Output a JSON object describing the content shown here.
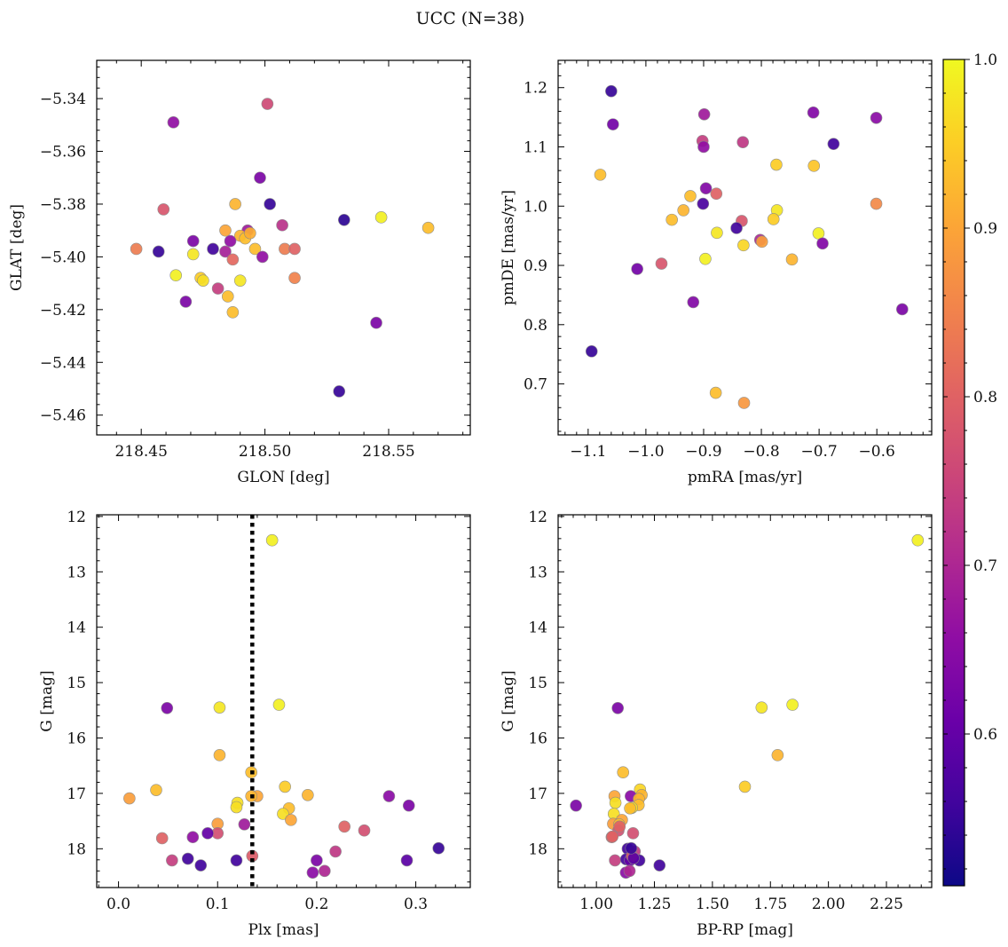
{
  "suptitle": "UCC (N=38)",
  "colorbar": {
    "cmap": "plasma",
    "min": 0.51,
    "max": 1.0,
    "ticks": [
      0.6,
      0.7,
      0.8,
      0.9,
      1.0
    ],
    "tick_labels": [
      "0.6",
      "0.7",
      "0.8",
      "0.9",
      "1.0"
    ]
  },
  "chart_data": [
    {
      "type": "scatter",
      "xlabel": "GLON [deg]",
      "ylabel": "GLAT [deg]",
      "xlim": [
        218.432,
        218.583
      ],
      "ylim": [
        -5.4675,
        -5.3255
      ],
      "xticks": [
        218.45,
        218.5,
        218.55
      ],
      "xtick_labels": [
        "218.45",
        "218.50",
        "218.55"
      ],
      "yticks": [
        -5.46,
        -5.44,
        -5.42,
        -5.4,
        -5.38,
        -5.36,
        -5.34
      ],
      "ytick_labels": [
        "−5.46",
        "−5.44",
        "−5.42",
        "−5.40",
        "−5.38",
        "−5.36",
        "−5.34"
      ],
      "points": [
        [
          218.463,
          -5.349,
          0.66
        ],
        [
          218.501,
          -5.342,
          0.76
        ],
        [
          218.498,
          -5.37,
          0.63
        ],
        [
          218.459,
          -5.382,
          0.78
        ],
        [
          218.488,
          -5.38,
          0.92
        ],
        [
          218.502,
          -5.38,
          0.55
        ],
        [
          218.532,
          -5.386,
          0.54
        ],
        [
          218.547,
          -5.385,
          0.99
        ],
        [
          218.566,
          -5.389,
          0.93
        ],
        [
          218.507,
          -5.388,
          0.72
        ],
        [
          218.493,
          -5.39,
          0.68
        ],
        [
          218.49,
          -5.392,
          0.92
        ],
        [
          218.492,
          -5.393,
          0.93
        ],
        [
          218.486,
          -5.394,
          0.66
        ],
        [
          218.471,
          -5.394,
          0.63
        ],
        [
          218.448,
          -5.397,
          0.84
        ],
        [
          218.457,
          -5.398,
          0.55
        ],
        [
          218.479,
          -5.397,
          0.56
        ],
        [
          218.496,
          -5.397,
          0.93
        ],
        [
          218.508,
          -5.397,
          0.84
        ],
        [
          218.484,
          -5.398,
          0.69
        ],
        [
          218.471,
          -5.399,
          0.98
        ],
        [
          218.499,
          -5.4,
          0.66
        ],
        [
          218.487,
          -5.401,
          0.81
        ],
        [
          218.464,
          -5.407,
          0.99
        ],
        [
          218.474,
          -5.408,
          0.95
        ],
        [
          218.475,
          -5.409,
          0.97
        ],
        [
          218.49,
          -5.409,
          0.98
        ],
        [
          218.512,
          -5.408,
          0.85
        ],
        [
          218.481,
          -5.412,
          0.74
        ],
        [
          218.485,
          -5.415,
          0.93
        ],
        [
          218.468,
          -5.417,
          0.63
        ],
        [
          218.487,
          -5.421,
          0.93
        ],
        [
          218.545,
          -5.425,
          0.63
        ],
        [
          218.53,
          -5.451,
          0.55
        ],
        [
          218.484,
          -5.39,
          0.9
        ],
        [
          218.494,
          -5.391,
          0.91
        ],
        [
          218.512,
          -5.397,
          0.8
        ]
      ]
    },
    {
      "type": "scatter",
      "xlabel": "pmRA [mas/yr]",
      "ylabel": "pmDE [mas/yr]",
      "xlim": [
        -1.152,
        -0.505
      ],
      "ylim": [
        0.614,
        1.246
      ],
      "xticks": [
        -1.1,
        -1.0,
        -0.9,
        -0.8,
        -0.7,
        -0.6
      ],
      "xtick_labels": [
        "−1.1",
        "−1.0",
        "−0.9",
        "−0.8",
        "−0.7",
        "−0.6"
      ],
      "yticks": [
        0.7,
        0.8,
        0.9,
        1.0,
        1.1,
        1.2
      ],
      "ytick_labels": [
        "0.7",
        "0.8",
        "0.9",
        "1.0",
        "1.1",
        "1.2"
      ],
      "points": [
        [
          -1.06,
          1.194,
          0.55
        ],
        [
          -1.057,
          1.138,
          0.62
        ],
        [
          -0.71,
          1.158,
          0.64
        ],
        [
          -0.601,
          1.149,
          0.65
        ],
        [
          -0.899,
          1.155,
          0.68
        ],
        [
          -0.902,
          1.11,
          0.74
        ],
        [
          -0.9,
          1.1,
          0.66
        ],
        [
          -0.832,
          1.108,
          0.73
        ],
        [
          -0.675,
          1.105,
          0.56
        ],
        [
          -1.079,
          1.053,
          0.93
        ],
        [
          -0.774,
          1.07,
          0.95
        ],
        [
          -0.709,
          1.068,
          0.94
        ],
        [
          -0.896,
          1.03,
          0.64
        ],
        [
          -0.923,
          1.017,
          0.93
        ],
        [
          -0.878,
          1.021,
          0.8
        ],
        [
          -0.901,
          1.004,
          0.57
        ],
        [
          -0.601,
          1.004,
          0.86
        ],
        [
          -0.935,
          0.993,
          0.92
        ],
        [
          -0.773,
          0.993,
          0.98
        ],
        [
          -0.955,
          0.977,
          0.93
        ],
        [
          -0.834,
          0.975,
          0.78
        ],
        [
          -0.779,
          0.978,
          0.95
        ],
        [
          -0.843,
          0.963,
          0.56
        ],
        [
          -0.877,
          0.955,
          0.98
        ],
        [
          -0.701,
          0.954,
          0.99
        ],
        [
          -0.802,
          0.943,
          0.7
        ],
        [
          -0.799,
          0.94,
          0.89
        ],
        [
          -0.831,
          0.934,
          0.96
        ],
        [
          -0.694,
          0.937,
          0.64
        ],
        [
          -0.897,
          0.911,
          0.99
        ],
        [
          -0.747,
          0.91,
          0.92
        ],
        [
          -0.973,
          0.903,
          0.78
        ],
        [
          -1.015,
          0.894,
          0.62
        ],
        [
          -0.918,
          0.838,
          0.64
        ],
        [
          -0.556,
          0.826,
          0.63
        ],
        [
          -1.094,
          0.755,
          0.55
        ],
        [
          -0.879,
          0.685,
          0.93
        ],
        [
          -0.83,
          0.668,
          0.88
        ]
      ]
    },
    {
      "type": "scatter",
      "xlabel": "Plx [mas]",
      "ylabel": "G [mag]",
      "xlim": [
        -0.022,
        0.355
      ],
      "ylim": [
        18.7,
        11.97
      ],
      "xticks": [
        0.0,
        0.1,
        0.2,
        0.3
      ],
      "xtick_labels": [
        "0.0",
        "0.1",
        "0.2",
        "0.3"
      ],
      "yticks": [
        12,
        13,
        14,
        15,
        16,
        17,
        18
      ],
      "ytick_labels": [
        "12",
        "13",
        "14",
        "15",
        "16",
        "17",
        "18"
      ],
      "vline": 0.135,
      "points": [
        [
          0.155,
          12.43,
          0.99
        ],
        [
          0.162,
          15.4,
          0.99
        ],
        [
          0.049,
          15.46,
          0.63
        ],
        [
          0.102,
          15.45,
          0.98
        ],
        [
          0.102,
          16.31,
          0.92
        ],
        [
          0.134,
          16.62,
          0.93
        ],
        [
          0.168,
          16.88,
          0.95
        ],
        [
          0.038,
          16.94,
          0.93
        ],
        [
          0.011,
          17.09,
          0.89
        ],
        [
          0.14,
          17.05,
          0.9
        ],
        [
          0.191,
          17.03,
          0.92
        ],
        [
          0.273,
          17.05,
          0.65
        ],
        [
          0.12,
          17.17,
          0.97
        ],
        [
          0.119,
          17.25,
          0.97
        ],
        [
          0.172,
          17.27,
          0.93
        ],
        [
          0.166,
          17.37,
          0.97
        ],
        [
          0.293,
          17.22,
          0.63
        ],
        [
          0.1,
          17.55,
          0.89
        ],
        [
          0.174,
          17.48,
          0.9
        ],
        [
          0.127,
          17.56,
          0.68
        ],
        [
          0.228,
          17.6,
          0.8
        ],
        [
          0.248,
          17.67,
          0.77
        ],
        [
          0.1,
          17.72,
          0.77
        ],
        [
          0.044,
          17.81,
          0.8
        ],
        [
          0.09,
          17.72,
          0.6
        ],
        [
          0.075,
          17.79,
          0.66
        ],
        [
          0.135,
          18.13,
          0.79
        ],
        [
          0.054,
          18.21,
          0.74
        ],
        [
          0.07,
          18.18,
          0.56
        ],
        [
          0.083,
          18.3,
          0.56
        ],
        [
          0.119,
          18.21,
          0.56
        ],
        [
          0.2,
          18.21,
          0.63
        ],
        [
          0.219,
          18.05,
          0.73
        ],
        [
          0.291,
          18.21,
          0.59
        ],
        [
          0.323,
          17.99,
          0.55
        ],
        [
          0.196,
          18.43,
          0.65
        ],
        [
          0.208,
          18.4,
          0.7
        ],
        [
          0.134,
          17.05,
          0.92
        ]
      ]
    },
    {
      "type": "scatter",
      "xlabel": "BP-RP [mag]",
      "ylabel": "G [mag]",
      "xlim": [
        0.835,
        2.445
      ],
      "ylim": [
        18.7,
        11.97
      ],
      "xticks": [
        1.0,
        1.25,
        1.5,
        1.75,
        2.0,
        2.25
      ],
      "xtick_labels": [
        "1.00",
        "1.25",
        "1.50",
        "1.75",
        "2.00",
        "2.25"
      ],
      "yticks": [
        12,
        13,
        14,
        15,
        16,
        17,
        18
      ],
      "ytick_labels": [
        "12",
        "13",
        "14",
        "15",
        "16",
        "17",
        "18"
      ],
      "points": [
        [
          2.385,
          12.43,
          0.99
        ],
        [
          1.845,
          15.4,
          0.99
        ],
        [
          1.712,
          15.45,
          0.98
        ],
        [
          1.092,
          15.46,
          0.63
        ],
        [
          1.781,
          16.31,
          0.92
        ],
        [
          1.64,
          16.88,
          0.95
        ],
        [
          1.115,
          16.62,
          0.93
        ],
        [
          1.188,
          16.93,
          0.96
        ],
        [
          1.195,
          17.03,
          0.92
        ],
        [
          1.078,
          17.05,
          0.9
        ],
        [
          1.148,
          17.05,
          0.65
        ],
        [
          1.183,
          17.1,
          0.92
        ],
        [
          1.082,
          17.17,
          0.97
        ],
        [
          1.182,
          17.21,
          0.93
        ],
        [
          0.912,
          17.22,
          0.63
        ],
        [
          1.153,
          17.26,
          0.97
        ],
        [
          1.145,
          17.27,
          0.93
        ],
        [
          1.075,
          17.37,
          0.97
        ],
        [
          1.11,
          17.48,
          0.9
        ],
        [
          1.072,
          17.55,
          0.89
        ],
        [
          1.098,
          17.56,
          0.93
        ],
        [
          1.095,
          17.67,
          0.77
        ],
        [
          1.158,
          17.72,
          0.77
        ],
        [
          1.066,
          17.79,
          0.8
        ],
        [
          1.069,
          17.78,
          0.8
        ],
        [
          1.135,
          18.0,
          0.56
        ],
        [
          1.165,
          18.05,
          0.73
        ],
        [
          1.08,
          18.21,
          0.74
        ],
        [
          1.128,
          18.19,
          0.56
        ],
        [
          1.145,
          18.21,
          0.6
        ],
        [
          1.185,
          18.21,
          0.56
        ],
        [
          1.153,
          18.13,
          0.79
        ],
        [
          1.272,
          18.3,
          0.56
        ],
        [
          1.127,
          18.43,
          0.65
        ],
        [
          1.143,
          18.4,
          0.7
        ],
        [
          1.16,
          18.17,
          0.59
        ],
        [
          1.1,
          17.6,
          0.8
        ],
        [
          1.15,
          17.99,
          0.55
        ]
      ]
    }
  ]
}
